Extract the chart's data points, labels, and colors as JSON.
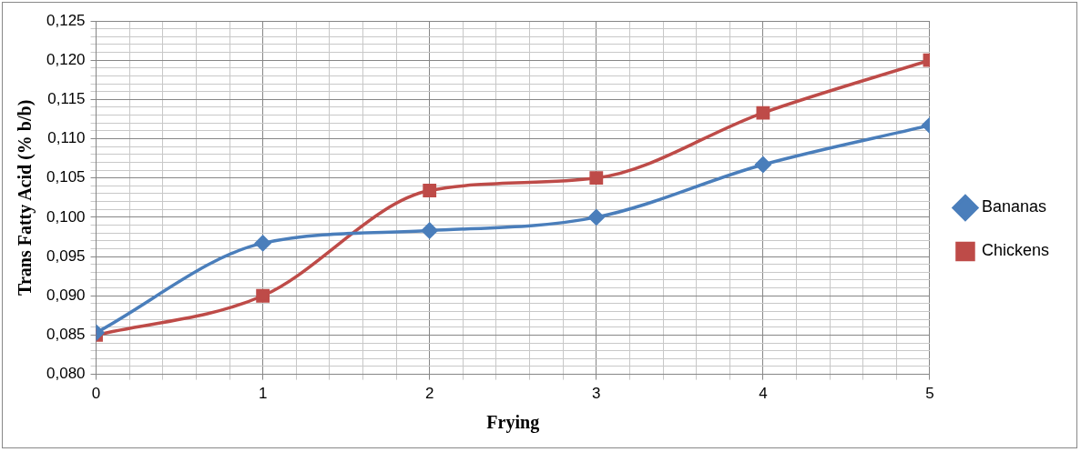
{
  "chart_data": {
    "type": "line",
    "xlabel": "Frying",
    "ylabel": "Trans Fatty Acid (% b/b)",
    "x": [
      0,
      1,
      2,
      3,
      4,
      5
    ],
    "series": [
      {
        "name": "Bananas",
        "color": "#4a7ebb",
        "marker": "diamond",
        "values": [
          0.0853,
          0.0967,
          0.0983,
          0.1,
          0.1067,
          0.1117
        ]
      },
      {
        "name": "Chickens",
        "color": "#be4b48",
        "marker": "square",
        "values": [
          0.085,
          0.09,
          0.1034,
          0.105,
          0.1133,
          0.12
        ]
      }
    ],
    "xlim": [
      0,
      5
    ],
    "ylim": [
      0.08,
      0.125
    ],
    "xticks": [
      0,
      {
        "value": 0.2,
        "label": null
      },
      {
        "value": 0.4,
        "label": null
      },
      {
        "value": 0.6,
        "label": null
      },
      {
        "value": 0.8,
        "label": null
      },
      1,
      {
        "value": 1.2,
        "label": null
      },
      {
        "value": 1.4,
        "label": null
      },
      {
        "value": 1.6,
        "label": null
      },
      {
        "value": 1.8,
        "label": null
      },
      2,
      {
        "value": 2.2,
        "label": null
      },
      {
        "value": 2.4,
        "label": null
      },
      {
        "value": 2.6,
        "label": null
      },
      {
        "value": 2.8,
        "label": null
      },
      3,
      {
        "value": 3.2,
        "label": null
      },
      {
        "value": 3.4,
        "label": null
      },
      {
        "value": 3.6,
        "label": null
      },
      {
        "value": 3.8,
        "label": null
      },
      4,
      {
        "value": 4.2,
        "label": null
      },
      {
        "value": 4.4,
        "label": null
      },
      {
        "value": 4.6,
        "label": null
      },
      {
        "value": 4.8,
        "label": null
      },
      5
    ],
    "yticks": [
      {
        "value": 0.08,
        "label": "0,080"
      },
      {
        "value": 0.081,
        "label": null
      },
      {
        "value": 0.082,
        "label": null
      },
      {
        "value": 0.083,
        "label": null
      },
      {
        "value": 0.084,
        "label": null
      },
      {
        "value": 0.085,
        "label": "0,085"
      },
      {
        "value": 0.086,
        "label": null
      },
      {
        "value": 0.087,
        "label": null
      },
      {
        "value": 0.088,
        "label": null
      },
      {
        "value": 0.089,
        "label": null
      },
      {
        "value": 0.09,
        "label": "0,090"
      },
      {
        "value": 0.091,
        "label": null
      },
      {
        "value": 0.092,
        "label": null
      },
      {
        "value": 0.093,
        "label": null
      },
      {
        "value": 0.094,
        "label": null
      },
      {
        "value": 0.095,
        "label": "0,095"
      },
      {
        "value": 0.096,
        "label": null
      },
      {
        "value": 0.097,
        "label": null
      },
      {
        "value": 0.098,
        "label": null
      },
      {
        "value": 0.099,
        "label": null
      },
      {
        "value": 0.1,
        "label": "0,100"
      },
      {
        "value": 0.101,
        "label": null
      },
      {
        "value": 0.102,
        "label": null
      },
      {
        "value": 0.103,
        "label": null
      },
      {
        "value": 0.104,
        "label": null
      },
      {
        "value": 0.105,
        "label": "0,105"
      },
      {
        "value": 0.106,
        "label": null
      },
      {
        "value": 0.107,
        "label": null
      },
      {
        "value": 0.108,
        "label": null
      },
      {
        "value": 0.109,
        "label": null
      },
      {
        "value": 0.11,
        "label": "0,110"
      },
      {
        "value": 0.111,
        "label": null
      },
      {
        "value": 0.112,
        "label": null
      },
      {
        "value": 0.113,
        "label": null
      },
      {
        "value": 0.114,
        "label": null
      },
      {
        "value": 0.115,
        "label": "0,115"
      },
      {
        "value": 0.116,
        "label": null
      },
      {
        "value": 0.117,
        "label": null
      },
      {
        "value": 0.118,
        "label": null
      },
      {
        "value": 0.119,
        "label": null
      },
      {
        "value": 0.12,
        "label": "0,120"
      },
      {
        "value": 0.121,
        "label": null
      },
      {
        "value": 0.122,
        "label": null
      },
      {
        "value": 0.123,
        "label": null
      },
      {
        "value": 0.124,
        "label": null
      },
      {
        "value": 0.125,
        "label": "0,125"
      }
    ],
    "grid": true,
    "legend": "right",
    "line_style": "solid"
  }
}
